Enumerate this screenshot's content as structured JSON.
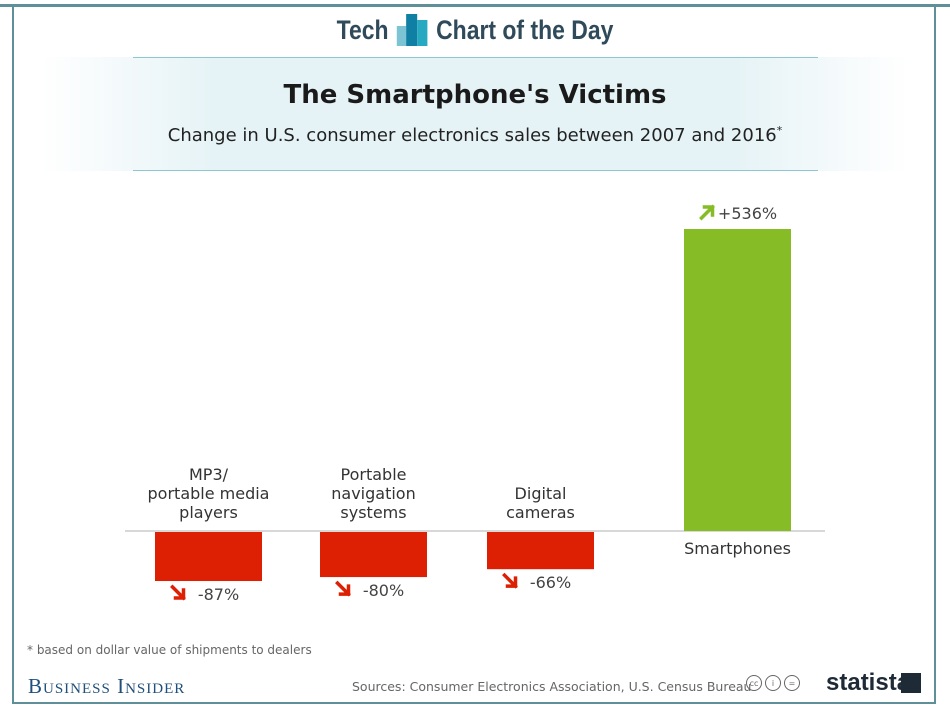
{
  "header": {
    "brand_left": "Tech",
    "brand_right": "Chart of the Day"
  },
  "chart_data": {
    "type": "bar",
    "title": "The Smartphone's Victims",
    "subtitle": "Change in U.S. consumer electronics sales between 2007 and 2016",
    "subtitle_mark": "*",
    "categories": [
      [
        "MP3/",
        "portable media",
        "players"
      ],
      [
        "Portable",
        "navigation",
        "systems"
      ],
      [
        "Digital",
        "cameras"
      ],
      [
        "Smartphones"
      ]
    ],
    "values": [
      -87,
      -80,
      -66,
      536
    ],
    "value_labels": [
      "-87%",
      "-80%",
      "-66%",
      "+536%"
    ],
    "colors": {
      "negative": "#dd1f03",
      "positive": "#86bc25",
      "baseline": "#cccccc"
    },
    "icons": {
      "negative": "arrow-down-right-icon",
      "positive": "arrow-up-right-icon"
    },
    "grid": false
  },
  "footer": {
    "note": "* based on dollar value of shipments to dealers",
    "publisher": "Business Insider",
    "sources": "Sources: Consumer Electronics Association, U.S. Census Bureau",
    "license_icons": [
      "cc-icon",
      "attribution-icon",
      "no-derivatives-icon"
    ],
    "statista": "statista"
  }
}
